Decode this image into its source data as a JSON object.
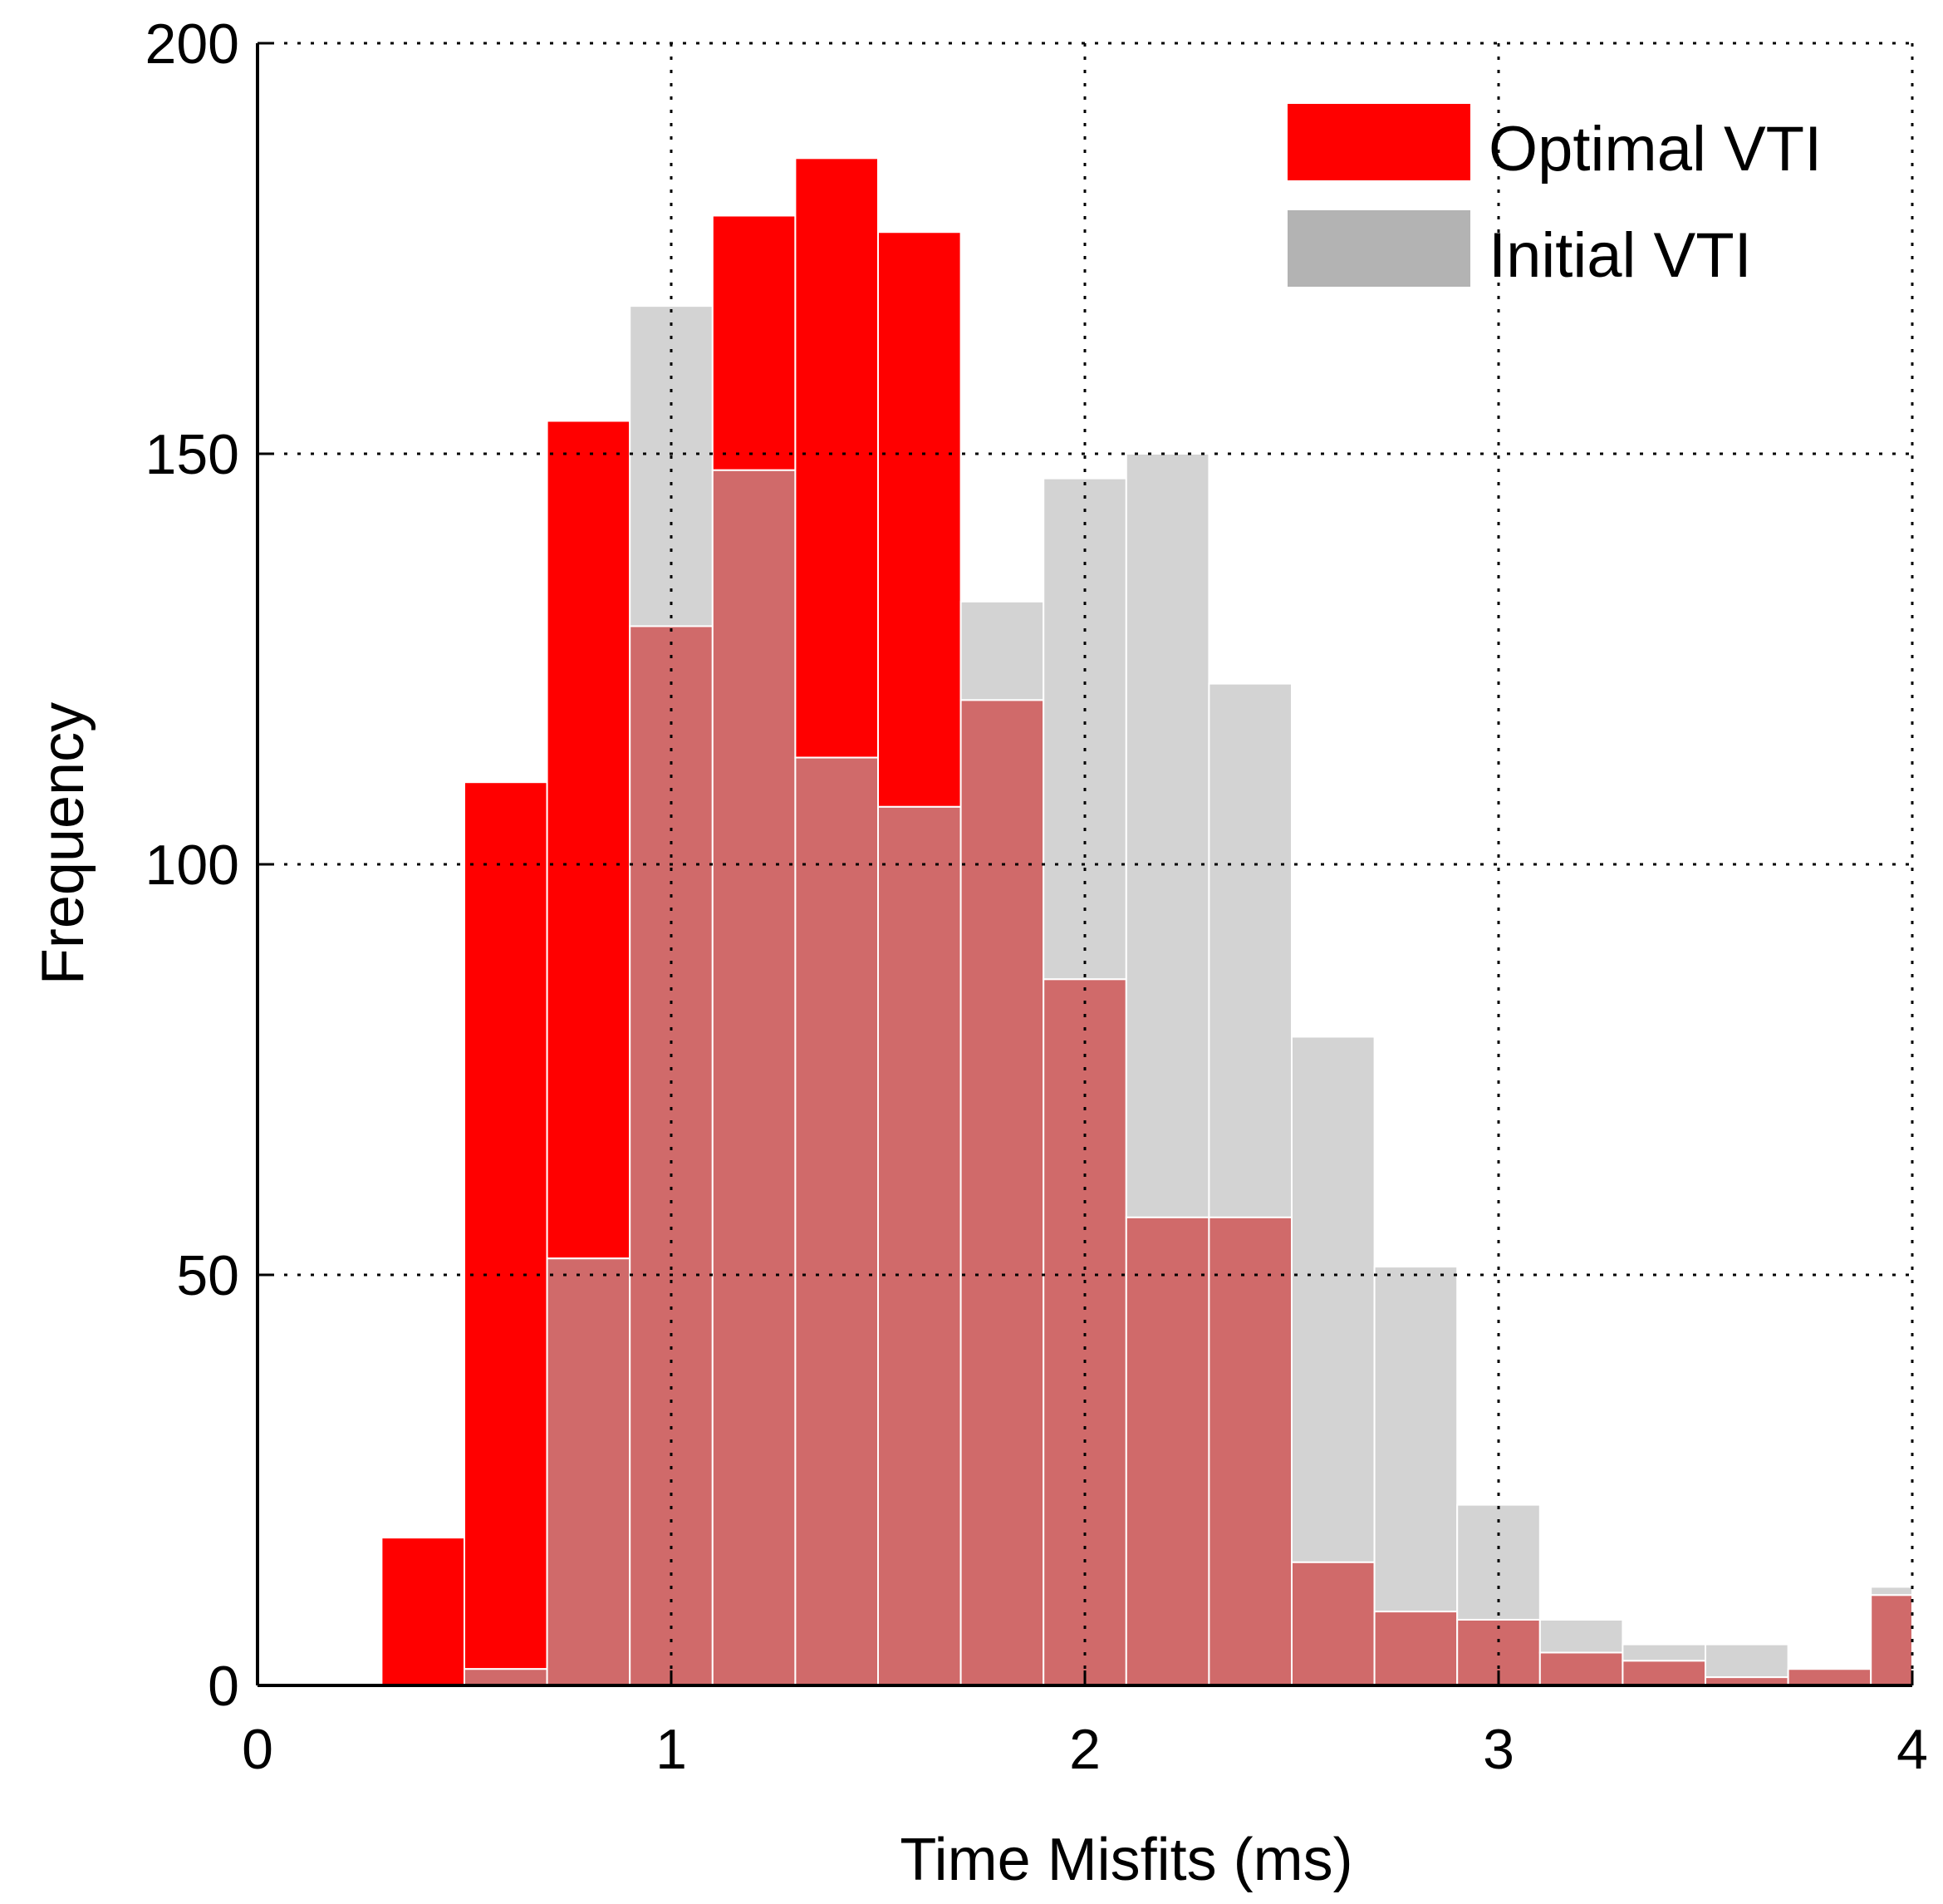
{
  "chart_data": {
    "type": "bar",
    "title": "",
    "xlabel": "Time Misfits (ms)",
    "ylabel": "Frequency",
    "xlim": [
      0,
      4
    ],
    "ylim": [
      0,
      200
    ],
    "xticks": [
      "0",
      "1",
      "2",
      "3",
      "4"
    ],
    "yticks": [
      "0",
      "50",
      "100",
      "150",
      "200"
    ],
    "grid": true,
    "legend_position": "top-right",
    "bin_edges": [
      0.3,
      0.5,
      0.7,
      0.9,
      1.1,
      1.3,
      1.5,
      1.7,
      1.9,
      2.1,
      2.3,
      2.5,
      2.7,
      2.9,
      3.1,
      3.3,
      3.5,
      3.7,
      3.9,
      4.0
    ],
    "series": [
      {
        "name": "Optimal VTI",
        "color": "#ff0000",
        "values": [
          18,
          110,
          154,
          129,
          179,
          186,
          177,
          120,
          86,
          57,
          57,
          15,
          9,
          8,
          4,
          3,
          1,
          2,
          11
        ]
      },
      {
        "name": "Initial VTI",
        "color": "#d3d3d3",
        "values": [
          0,
          2,
          52,
          168,
          148,
          113,
          107,
          132,
          147,
          150,
          122,
          79,
          51,
          22,
          8,
          5,
          5,
          2,
          12
        ]
      }
    ],
    "overlap_color": "#d06a6a",
    "legend_swatches": {
      "Optimal VTI": "#ff0000",
      "Initial VTI": "#b3b3b3"
    }
  }
}
